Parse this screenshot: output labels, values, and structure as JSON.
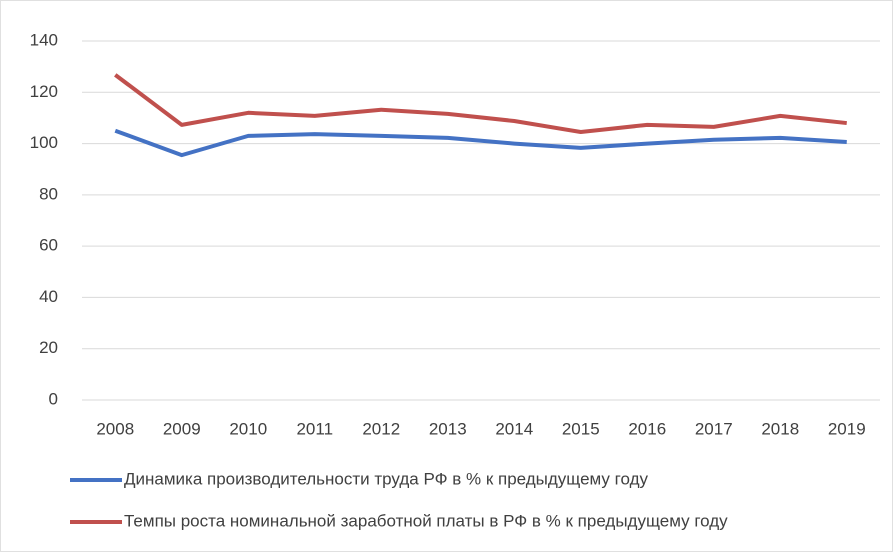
{
  "chart_data": {
    "type": "line",
    "categories": [
      "2008",
      "2009",
      "2010",
      "2011",
      "2012",
      "2013",
      "2014",
      "2015",
      "2016",
      "2017",
      "2018",
      "2019"
    ],
    "series": [
      {
        "name": "Динамика производительности труда РФ в % к предыдущему году",
        "color": "#4472c4",
        "values": [
          105,
          95.5,
          103,
          103.7,
          103,
          102.2,
          100,
          98.3,
          100,
          101.5,
          102.2,
          100.6
        ]
      },
      {
        "name": "Темпы роста номинальной заработной платы в РФ в % к предыдущему году",
        "color": "#c0504d",
        "values": [
          126.8,
          107.3,
          112,
          110.8,
          113.2,
          111.6,
          108.8,
          104.5,
          107.3,
          106.5,
          110.8,
          108
        ]
      }
    ],
    "ylim": [
      0,
      140
    ],
    "yticks": [
      0,
      20,
      40,
      60,
      80,
      100,
      120,
      140
    ],
    "grid": true,
    "legend": "bottom"
  }
}
